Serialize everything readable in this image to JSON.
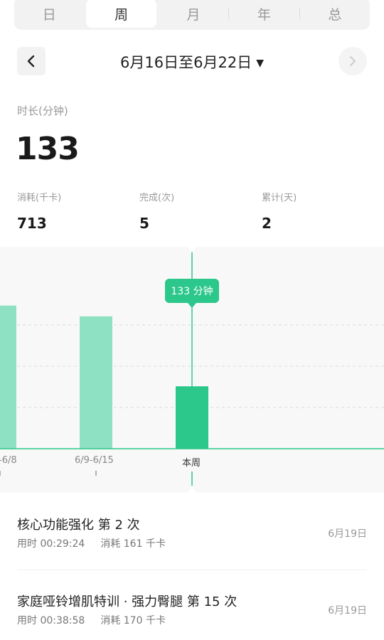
{
  "tabs": [
    "日",
    "周",
    "月",
    "年",
    "总"
  ],
  "active_tab": 1,
  "date_nav": {
    "range": "6月16日至6月22日"
  },
  "summary": {
    "duration_label": "时长(分钟)",
    "duration_value": "133",
    "stats": [
      {
        "label": "消耗(千卡)",
        "value": "713"
      },
      {
        "label": "完成(次)",
        "value": "5"
      },
      {
        "label": "累计(天)",
        "value": "2"
      }
    ]
  },
  "chart_data": {
    "type": "bar",
    "categories": [
      "-6/8",
      "6/9-6/15",
      "本周"
    ],
    "values": [
      305,
      282,
      133
    ],
    "selected_index": 2,
    "tooltip": "133 分钟",
    "colors": {
      "bar": "#8fe1c3",
      "bar_selected": "#2cc78a",
      "baseline": "#2cc78a",
      "grid": "#dddddd"
    }
  },
  "records": [
    {
      "title": "核心功能强化 第 2 次",
      "duration": "用时 00:29:24",
      "calories": "消耗 161 千卡",
      "date": "6月19日"
    },
    {
      "title": "家庭哑铃增肌特训 · 强力臀腿 第 15 次",
      "duration": "用时 00:38:58",
      "calories": "消耗 170 千卡",
      "date": "6月19日"
    }
  ]
}
